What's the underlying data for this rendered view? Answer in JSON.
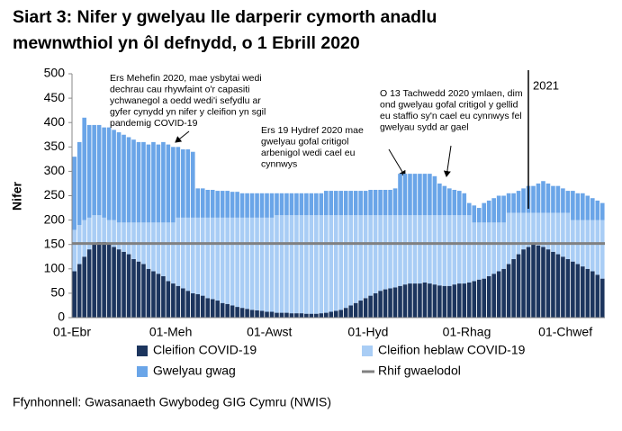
{
  "chart_data": {
    "type": "stacked-bar",
    "title": [
      "Siart 3: Nifer y gwelyau lle darperir cymorth anadlu",
      "mewnwthiol yn ôl defnydd, o 1 Ebrill 2020"
    ],
    "y_label": "Nifer",
    "categories": [
      "01-Ebr",
      null,
      null,
      null,
      null,
      null,
      null,
      null,
      null,
      null,
      null,
      null,
      null,
      null,
      null,
      null,
      null,
      null,
      null,
      null,
      "01-Meh",
      null,
      null,
      null,
      null,
      null,
      null,
      null,
      null,
      null,
      null,
      null,
      null,
      null,
      null,
      null,
      null,
      null,
      null,
      null,
      "01-Awst",
      null,
      null,
      null,
      null,
      null,
      null,
      null,
      null,
      null,
      null,
      null,
      null,
      null,
      null,
      null,
      null,
      null,
      null,
      null,
      "01-Hyd",
      null,
      null,
      null,
      null,
      null,
      null,
      null,
      null,
      null,
      null,
      null,
      null,
      null,
      null,
      null,
      null,
      null,
      null,
      null,
      "01-Rhag",
      null,
      null,
      null,
      null,
      null,
      null,
      null,
      null,
      null,
      null,
      null,
      null,
      null,
      null,
      null,
      null,
      null,
      null,
      null,
      "01-Chwef",
      null,
      null,
      null,
      null,
      null,
      null,
      null
    ],
    "series": [
      {
        "name": "Cleifion COVID-19",
        "color": "#1c355e",
        "values": [
          95,
          110,
          125,
          140,
          150,
          155,
          155,
          150,
          145,
          140,
          135,
          130,
          120,
          115,
          110,
          100,
          95,
          90,
          85,
          75,
          70,
          65,
          60,
          55,
          50,
          48,
          45,
          40,
          38,
          35,
          30,
          28,
          25,
          22,
          20,
          18,
          16,
          15,
          14,
          12,
          12,
          10,
          10,
          10,
          9,
          9,
          9,
          8,
          8,
          8,
          9,
          10,
          12,
          14,
          16,
          20,
          25,
          30,
          35,
          40,
          45,
          50,
          55,
          58,
          60,
          62,
          65,
          68,
          70,
          70,
          70,
          72,
          70,
          68,
          66,
          65,
          65,
          68,
          70,
          70,
          72,
          75,
          78,
          80,
          85,
          90,
          95,
          100,
          110,
          120,
          130,
          140,
          145,
          150,
          148,
          145,
          140,
          135,
          130,
          125,
          120,
          115,
          110,
          105,
          100,
          95,
          88,
          80
        ]
      },
      {
        "name": "Cleifion heblaw COVID-19",
        "color": "#a9cdf5",
        "values": [
          85,
          80,
          75,
          65,
          60,
          55,
          50,
          50,
          55,
          55,
          60,
          65,
          75,
          80,
          85,
          95,
          100,
          105,
          110,
          120,
          125,
          140,
          145,
          150,
          155,
          157,
          160,
          165,
          167,
          170,
          175,
          177,
          180,
          183,
          185,
          187,
          189,
          190,
          191,
          193,
          193,
          200,
          200,
          200,
          201,
          201,
          201,
          202,
          202,
          202,
          201,
          200,
          198,
          196,
          194,
          190,
          185,
          180,
          175,
          170,
          165,
          160,
          155,
          152,
          150,
          148,
          145,
          142,
          140,
          140,
          140,
          138,
          140,
          142,
          144,
          145,
          145,
          142,
          140,
          140,
          138,
          120,
          117,
          115,
          110,
          105,
          100,
          95,
          105,
          95,
          85,
          75,
          70,
          65,
          67,
          70,
          75,
          80,
          85,
          90,
          95,
          85,
          90,
          95,
          100,
          105,
          112,
          120
        ]
      },
      {
        "name": "Gwelyau gwag",
        "color": "#6aa5e8",
        "values": [
          150,
          170,
          210,
          190,
          185,
          185,
          185,
          190,
          185,
          185,
          180,
          175,
          170,
          165,
          165,
          160,
          165,
          160,
          165,
          160,
          155,
          145,
          140,
          140,
          135,
          60,
          60,
          57,
          57,
          55,
          55,
          55,
          53,
          53,
          50,
          50,
          50,
          50,
          50,
          50,
          50,
          45,
          45,
          45,
          45,
          45,
          45,
          45,
          45,
          45,
          45,
          50,
          50,
          50,
          50,
          50,
          50,
          50,
          50,
          50,
          52,
          52,
          52,
          52,
          52,
          55,
          85,
          85,
          85,
          85,
          85,
          85,
          85,
          80,
          65,
          60,
          55,
          52,
          50,
          45,
          25,
          35,
          30,
          40,
          45,
          50,
          55,
          55,
          40,
          40,
          45,
          50,
          55,
          55,
          60,
          65,
          60,
          55,
          55,
          50,
          45,
          60,
          55,
          55,
          50,
          45,
          40,
          35
        ]
      }
    ],
    "baseline": {
      "name": "Rhif gwaelodol",
      "value": 152,
      "color": "#808080"
    },
    "ylim": [
      0,
      500
    ],
    "yticks": [
      0,
      50,
      100,
      150,
      200,
      250,
      300,
      350,
      400,
      450,
      500
    ],
    "annotations": [
      [
        "Ers Mehefin 2020, mae ysbytai wedi",
        "dechrau cau rhywfaint o'r capasiti",
        "ychwanegol a oedd wedi'i sefydlu ar",
        "gyfer cynydd yn nifer y cleifion yn sgil",
        "pandemig COVID-19"
      ],
      [
        "Ers 19 Hydref 2020 mae",
        "gwelyau gofal critigol",
        "arbenigol wedi cael eu",
        "cynnwys"
      ],
      [
        "O 13 Tachwedd 2020 ymlaen, dim",
        "ond gwelyau gofal critigol y gellid",
        "eu staffio sy'n cael eu cynnwys fel",
        "gwelyau sydd ar gael"
      ],
      [
        "2021"
      ]
    ],
    "source": "Ffynhonnell: Gwasanaeth Gwybodeg GIG Cymru (NWIS)"
  }
}
